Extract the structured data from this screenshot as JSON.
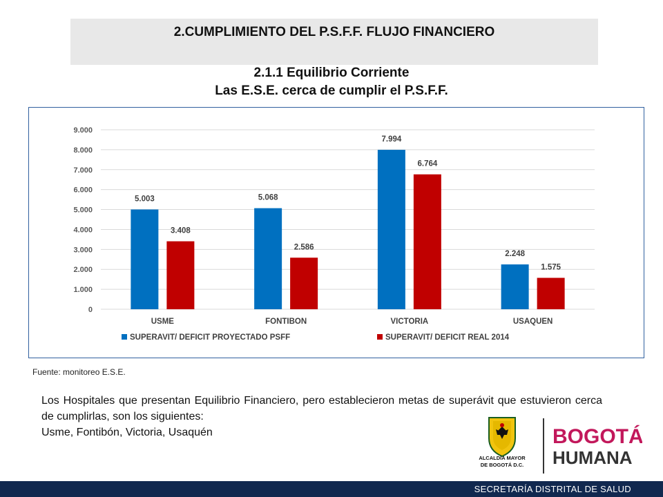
{
  "header": {
    "title": "2.CUMPLIMIENTO DEL P.S.F.F. FLUJO FINANCIERO",
    "subtitle_line1": "2.1.1 Equilibrio Corriente",
    "subtitle_line2": "Las E.S.E.  cerca de cumplir el  P.S.F.F."
  },
  "chart_data": {
    "type": "bar",
    "categories": [
      "USME",
      "FONTIBON",
      "VICTORIA",
      "USAQUEN"
    ],
    "series": [
      {
        "name": "SUPERAVIT/ DEFICIT PROYECTADO PSFF",
        "values": [
          5003,
          5068,
          7994,
          2248
        ],
        "labels": [
          "5.003",
          "5.068",
          "7.994",
          "2.248"
        ],
        "color": "#0070c0"
      },
      {
        "name": "SUPERAVIT/ DEFICIT  REAL 2014",
        "values": [
          3408,
          2586,
          6764,
          1575
        ],
        "labels": [
          "3.408",
          "2.586",
          "6.764",
          "1.575"
        ],
        "color": "#c00000"
      }
    ],
    "yticks": [
      0,
      1000,
      2000,
      3000,
      4000,
      5000,
      6000,
      7000,
      8000,
      9000
    ],
    "ytick_labels": [
      "0",
      "1.000",
      "2.000",
      "3.000",
      "4.000",
      "5.000",
      "6.000",
      "7.000",
      "8.000",
      "9.000"
    ],
    "ylim": [
      0,
      9000
    ],
    "grid": true,
    "legend": "bottom"
  },
  "source_text": "Fuente: monitoreo E.S.E.",
  "paragraph": {
    "line1": "Los Hospitales que presentan Equilibrio Financiero, pero establecieron metas de superávit que estuvieron cerca de cumplirlas, son los siguientes:",
    "line2": "Usme, Fontibón, Victoria, Usaquén"
  },
  "logos": {
    "alcaldia_line1": "ALCALDÍA MAYOR",
    "alcaldia_line2": "DE BOGOTÁ D.C.",
    "bogota_word1": "BOGOTÁ",
    "bogota_word2": "HUMANA"
  },
  "footer": {
    "text": "SECRETARÍA DISTRITAL DE SALUD"
  }
}
